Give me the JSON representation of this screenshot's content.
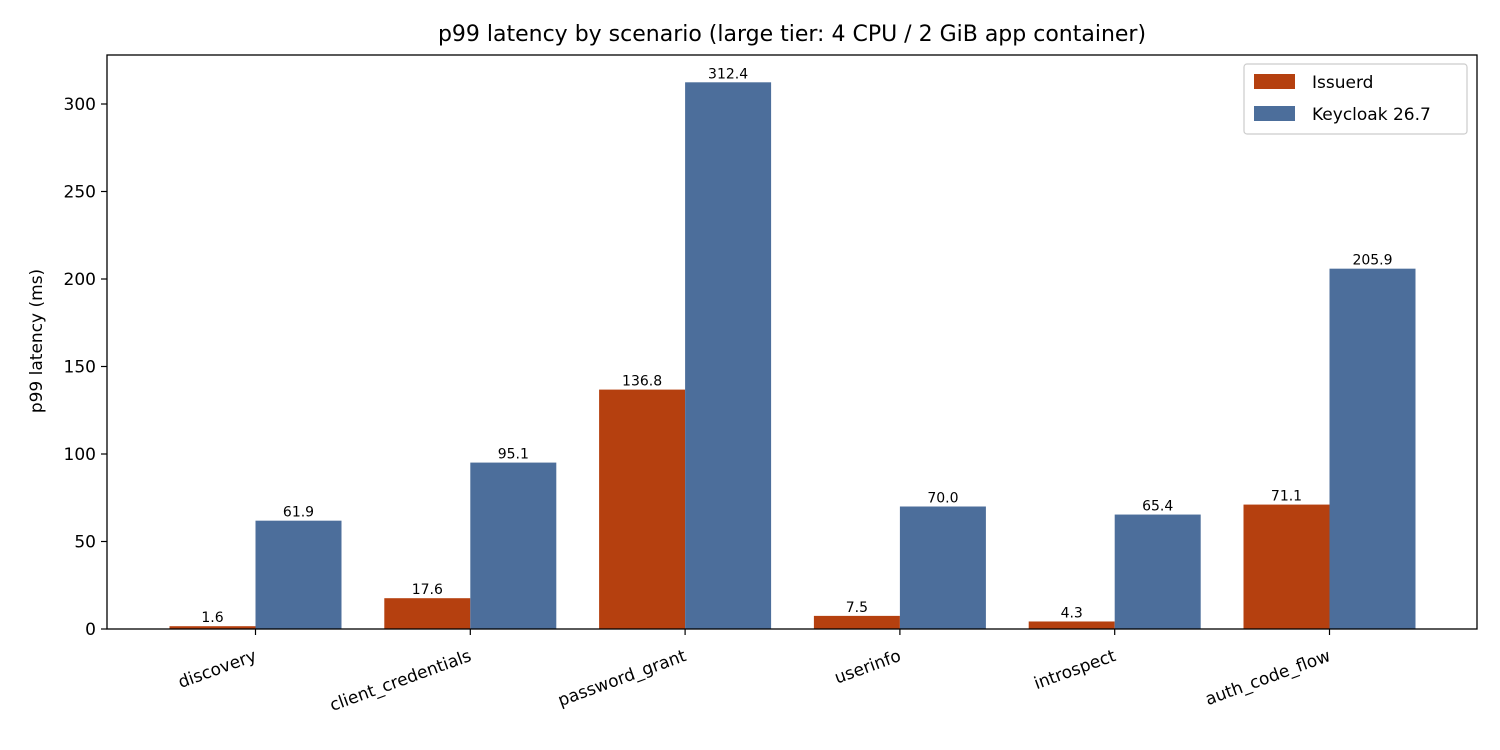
{
  "chart_data": {
    "type": "bar",
    "title": "p99 latency by scenario (large tier: 4 CPU / 2 GiB app container)",
    "xlabel": "",
    "ylabel": "p99 latency (ms)",
    "categories": [
      "discovery",
      "client_credentials",
      "password_grant",
      "userinfo",
      "introspect",
      "auth_code_flow"
    ],
    "series": [
      {
        "name": "Issuerd",
        "color": "#b5400f",
        "values": [
          1.6,
          17.6,
          136.8,
          7.5,
          4.3,
          71.1
        ],
        "labels": [
          "1.6",
          "17.6",
          "136.8",
          "7.5",
          "4.3",
          "71.1"
        ]
      },
      {
        "name": "Keycloak 26.7",
        "color": "#4c6e9b",
        "values": [
          61.9,
          95.1,
          312.4,
          70.0,
          65.4,
          205.9
        ],
        "labels": [
          "61.9",
          "95.1",
          "312.4",
          "70.0",
          "65.4",
          "205.9"
        ]
      }
    ],
    "yticks": [
      0,
      50,
      100,
      150,
      200,
      250,
      300
    ],
    "ylim": [
      0,
      328
    ],
    "grid": false,
    "legend": "top-right",
    "tick_rotation_deg": -20
  }
}
